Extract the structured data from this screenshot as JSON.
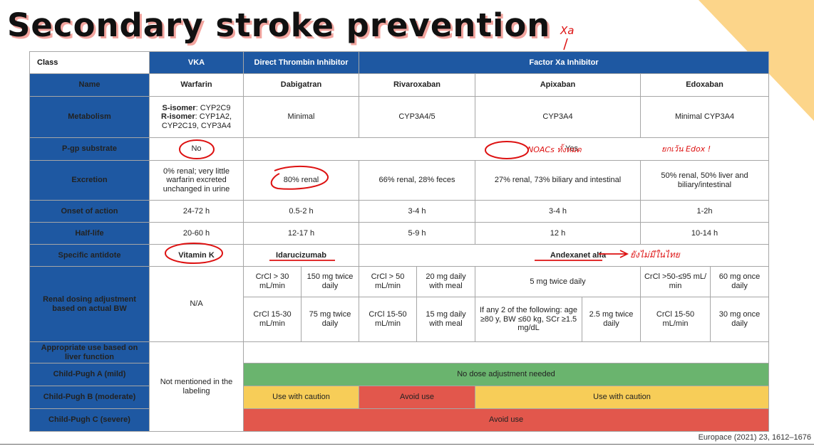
{
  "title": "Secondary stroke prevention",
  "citation": "Europace (2021) 23, 1612–1676",
  "colors": {
    "header_blue": "#1e58a2",
    "green": "#6ab46e",
    "yellow": "#f7cd58",
    "red": "#e2574c",
    "drug_red": "#c8232b",
    "ink": "#dd1111"
  },
  "table": {
    "class_label": "Class",
    "classes": {
      "vka": "VKA",
      "dti": "Direct Thrombin Inhibitor",
      "fxa": "Factor Xa Inhibitor"
    },
    "rows": {
      "name": "Name",
      "metabolism": "Metabolism",
      "pgp": "P-gp substrate",
      "excretion": "Excretion",
      "onset": "Onset of action",
      "halflife": "Half-life",
      "antidote": "Specific antidote",
      "renal": "Renal dosing adjustment based on actual BW",
      "liver": "Appropriate use based on liver function",
      "cpa": "Child-Pugh A  (mild)",
      "cpb": "Child-Pugh B (moderate)",
      "cpc": "Child-Pugh C (severe)"
    },
    "drugs": {
      "warfarin": {
        "name": "Warfarin",
        "metabolism_s_label": "S-isomer",
        "metabolism_s": ": CYP2C9",
        "metabolism_r_label": "R-isomer",
        "metabolism_r": ": CYP1A2, CYP2C19, CYP3A4",
        "pgp": "No",
        "excretion": "0% renal; very little warfarin excreted unchanged in urine",
        "onset": "24-72 h",
        "halflife": "20-60 h",
        "antidote": "Vitamin K",
        "renal": "N/A",
        "liver": "Not mentioned in the labeling"
      },
      "dabigatran": {
        "name": "Dabigatran",
        "metabolism": "Minimal",
        "excretion": "80% renal",
        "onset": "0.5-2 h",
        "halflife": "12-17 h",
        "antidote": "Idarucizumab",
        "renal1_crcl": "CrCl > 30 mL/min",
        "renal1_dose": "150 mg twice daily",
        "renal2_crcl": "CrCl 15-30 mL/min",
        "renal2_dose": "75 mg twice daily"
      },
      "rivaroxaban": {
        "name": "Rivaroxaban",
        "metabolism": "CYP3A4/5",
        "excretion": "66% renal, 28% feces",
        "onset": "3-4 h",
        "halflife": "5-9 h",
        "renal1_crcl": "CrCl > 50 mL/min",
        "renal1_dose": "20 mg daily with meal",
        "renal2_crcl": "CrCl 15-50 mL/min",
        "renal2_dose": "15 mg daily with meal"
      },
      "apixaban": {
        "name": "Apixaban",
        "metabolism": "CYP3A4",
        "excretion": "27% renal, 73% biliary and intestinal",
        "onset": "3-4 h",
        "halflife": "12 h",
        "antidote": "Andexanet alfa",
        "renal1": "5 mg twice daily",
        "renal2_crit": "If any 2 of the following: age ≥80 y, BW ≤60 kg, SCr ≥1.5 mg/dL",
        "renal2_dose": "2.5 mg twice daily"
      },
      "edoxaban": {
        "name": "Edoxaban",
        "metabolism": "Minimal CYP3A4",
        "excretion": "50% renal, 50% liver and biliary/intestinal",
        "onset": "1-2h",
        "halflife": "10-14 h",
        "renal1_crcl": "CrCl >50-≤95 mL/ min",
        "renal1_dose": "60 mg once daily",
        "renal2_crcl": "CrCl 15-50 mL/min",
        "renal2_dose": "30 mg once daily"
      }
    },
    "pgp_yes": "Yes",
    "cpa_value": "No dose adjustment needed",
    "caution": "Use with caution",
    "avoid": "Avoid use"
  },
  "annotations": {
    "xa": "Xa",
    "noacs_note": "NOACs ทั้งหมด",
    "edox_note": "ยกเว้น Edox !",
    "antidote_note": "ยังไม่มีในไทย"
  }
}
